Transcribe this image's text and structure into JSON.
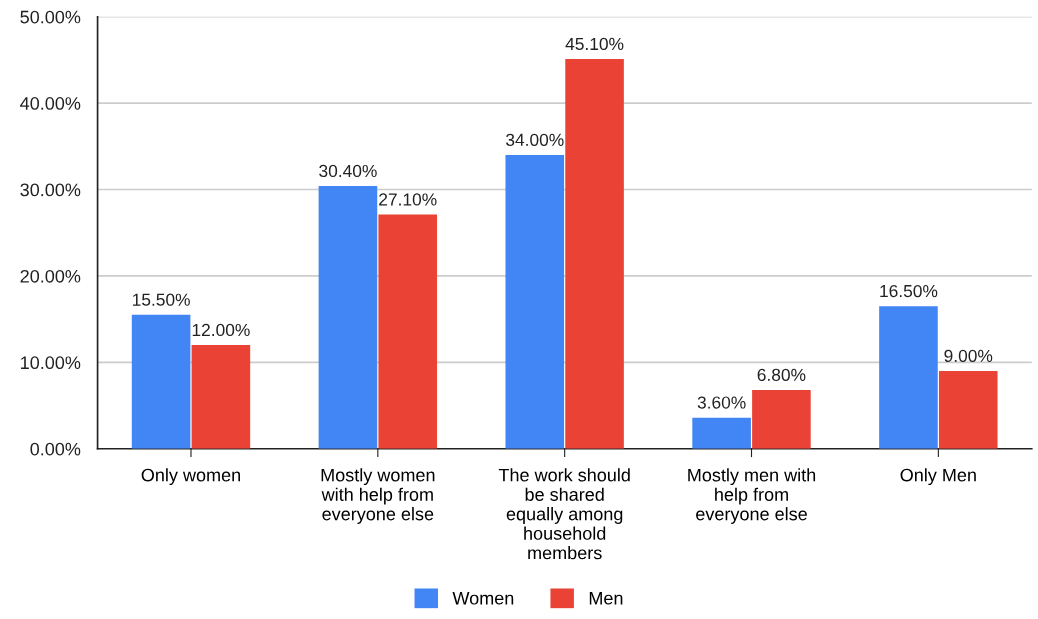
{
  "chart_data": {
    "type": "bar",
    "categories": [
      "Only women",
      "Mostly women\nwith help from\neveryone else",
      "The work should\nbe shared\nequally among\nhousehold\nmembers",
      "Mostly men with\nhelp from\neveryone else",
      "Only Men"
    ],
    "series": [
      {
        "name": "Women",
        "color": "#4285f4",
        "values": [
          15.5,
          30.4,
          34.0,
          3.6,
          16.5
        ],
        "value_labels": [
          "15.50%",
          "30.40%",
          "34.00%",
          "3.60%",
          "16.50%"
        ]
      },
      {
        "name": "Men",
        "color": "#ea4335",
        "values": [
          12.0,
          27.1,
          45.1,
          6.8,
          9.0
        ],
        "value_labels": [
          "12.00%",
          "27.10%",
          "45.10%",
          "6.80%",
          "9.00%"
        ]
      }
    ],
    "ylim": [
      0,
      50
    ],
    "yticks": [
      {
        "value": 0,
        "label": "0.00%"
      },
      {
        "value": 10,
        "label": "10.00%"
      },
      {
        "value": 20,
        "label": "20.00%"
      },
      {
        "value": 30,
        "label": "30.00%"
      },
      {
        "value": 40,
        "label": "40.00%"
      },
      {
        "value": 50,
        "label": "50.00%"
      }
    ],
    "grid": "y",
    "legend": "bottom"
  }
}
